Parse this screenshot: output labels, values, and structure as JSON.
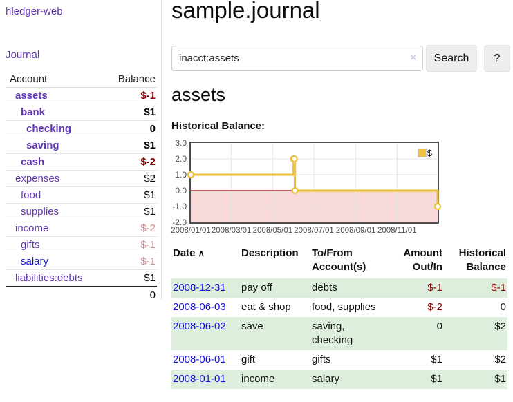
{
  "app": {
    "brand": "hledger-web"
  },
  "sidebar": {
    "journal_link": "Journal",
    "accounts": {
      "col_account": "Account",
      "col_balance": "Balance",
      "rows": [
        {
          "name": "assets",
          "balance": "$-1",
          "depth": 1,
          "highlight": true,
          "link_color": "purple",
          "balance_tone": "negative"
        },
        {
          "name": "bank",
          "balance": "$1",
          "depth": 2,
          "highlight": true,
          "link_color": "purple",
          "balance_tone": "normal"
        },
        {
          "name": "checking",
          "balance": "0",
          "depth": 3,
          "highlight": true,
          "link_color": "purple",
          "balance_tone": "normal"
        },
        {
          "name": "saving",
          "balance": "$1",
          "depth": 3,
          "highlight": true,
          "link_color": "purple",
          "balance_tone": "normal"
        },
        {
          "name": "cash",
          "balance": "$-2",
          "depth": 2,
          "highlight": true,
          "link_color": "purple",
          "balance_tone": "negative"
        },
        {
          "name": "expenses",
          "balance": "$2",
          "depth": 1,
          "highlight": false,
          "link_color": "purple",
          "balance_tone": "normal"
        },
        {
          "name": "food",
          "balance": "$1",
          "depth": 2,
          "highlight": false,
          "link_color": "purple",
          "balance_tone": "normal"
        },
        {
          "name": "supplies",
          "balance": "$1",
          "depth": 2,
          "highlight": false,
          "link_color": "purple",
          "balance_tone": "normal"
        },
        {
          "name": "income",
          "balance": "$-2",
          "depth": 1,
          "highlight": false,
          "link_color": "purple",
          "balance_tone": "faded"
        },
        {
          "name": "gifts",
          "balance": "$-1",
          "depth": 2,
          "highlight": false,
          "link_color": "purple",
          "balance_tone": "faded"
        },
        {
          "name": "salary",
          "balance": "$-1",
          "depth": 2,
          "highlight": false,
          "link_color": "blue",
          "balance_tone": "faded"
        },
        {
          "name": "liabilities:debts",
          "balance": "$1",
          "depth": 1,
          "highlight": false,
          "link_color": "purple",
          "balance_tone": "normal"
        }
      ],
      "total": "0"
    }
  },
  "header": {
    "title": "sample.journal"
  },
  "search": {
    "value": "inacct:assets",
    "clear_icon": "×",
    "search_button": "Search",
    "help_button": "?"
  },
  "main": {
    "account_heading": "assets",
    "chart_label": "Historical Balance:"
  },
  "chart_data": {
    "type": "line",
    "title": "Historical Balance:",
    "step": true,
    "series": [
      {
        "name": "$",
        "color": "#edc240",
        "points": [
          [
            "2008-01-01",
            1.0
          ],
          [
            "2008-06-01",
            2.0
          ],
          [
            "2008-06-02",
            2.0
          ],
          [
            "2008-06-03",
            0.0
          ],
          [
            "2008-12-31",
            -1.0
          ]
        ]
      }
    ],
    "xrange": [
      "2008-01-01",
      "2008-12-31"
    ],
    "ylim": [
      -2.0,
      3.0
    ],
    "yticks": [
      "3.0",
      "2.0",
      "1.0",
      "0.0",
      "-1.0",
      "-2.0"
    ],
    "xticks": [
      "2008/01/01",
      "2008/03/01",
      "2008/05/01",
      "2008/07/01",
      "2008/09/01",
      "2008/11/01"
    ],
    "legend": {
      "position": "top-right",
      "label": "$",
      "swatch_color": "#edc240"
    },
    "grid": true,
    "gridline_color": "#e6e6e6",
    "zero_line_color": "#8b0000",
    "negative_fill": "#f9dada",
    "marker_fill": "#ffffff"
  },
  "register": {
    "sort_icon": "∧",
    "headers": [
      {
        "lines": [
          "Date"
        ],
        "sorted": true,
        "align": "left"
      },
      {
        "lines": [
          "Description"
        ],
        "align": "left"
      },
      {
        "lines": [
          "To/From",
          "Account(s)"
        ],
        "align": "left"
      },
      {
        "lines": [
          "Amount",
          "Out/In"
        ],
        "align": "right"
      },
      {
        "lines": [
          "Historical",
          "Balance"
        ],
        "align": "right"
      }
    ],
    "rows": [
      {
        "date": "2008-12-31",
        "description": "pay off",
        "accounts": "debts",
        "amount": "$-1",
        "balance": "$-1"
      },
      {
        "date": "2008-06-03",
        "description": "eat & shop",
        "accounts": "food, supplies",
        "amount": "$-2",
        "balance": "0"
      },
      {
        "date": "2008-06-02",
        "description": "save",
        "accounts": "saving, checking",
        "amount": "0",
        "balance": "$2"
      },
      {
        "date": "2008-06-01",
        "description": "gift",
        "accounts": "gifts",
        "amount": "$1",
        "balance": "$2"
      },
      {
        "date": "2008-01-01",
        "description": "income",
        "accounts": "salary",
        "amount": "$1",
        "balance": "$1"
      }
    ]
  },
  "colors": {
    "link_purple": "#6236b5",
    "link_blue": "#1512e0",
    "negative_strong": "#8b0000",
    "negative_faded": "#c98c8b",
    "row_stripe_green": "#ddeedd",
    "series_gold": "#edc240",
    "divider_gray": "#dddddd"
  }
}
